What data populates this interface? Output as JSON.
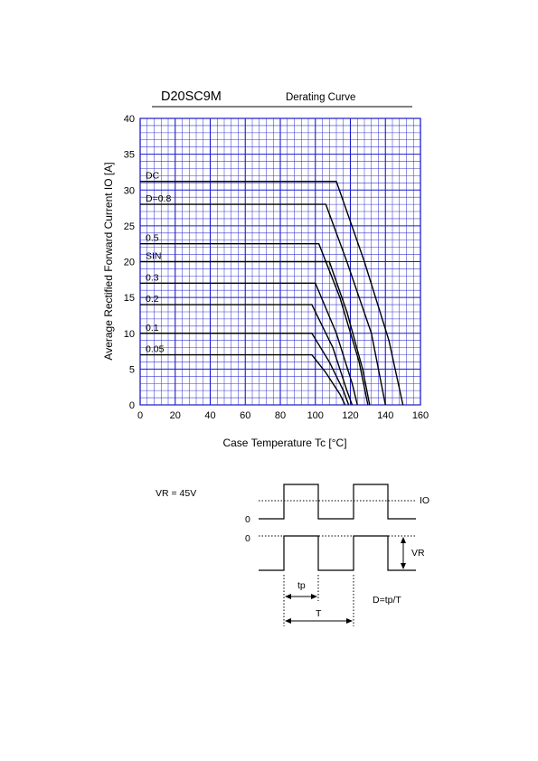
{
  "header": {
    "part_number": "D20SC9M",
    "subtitle": "Derating Curve"
  },
  "chart_data": {
    "type": "line",
    "title": "Derating Curve",
    "xlabel": "Case Temperature  Tc  [°C]",
    "ylabel": "Average Rectified Forward Current  IO [A]",
    "xlim": [
      0,
      160
    ],
    "ylim": [
      0,
      40
    ],
    "xticks": [
      "0",
      "20",
      "40",
      "60",
      "80",
      "100",
      "120",
      "140",
      "160"
    ],
    "yticks": [
      "0",
      "5",
      "10",
      "15",
      "20",
      "25",
      "30",
      "35",
      "40"
    ],
    "grid": true,
    "grid_color": "#1a1acc",
    "line_color": "#000000",
    "series": [
      {
        "name": "DC",
        "x": [
          0,
          112,
          128,
          142,
          150
        ],
        "y": [
          31.2,
          31.2,
          20,
          9,
          0
        ]
      },
      {
        "name": "D=0.8",
        "x": [
          0,
          106,
          118,
          132,
          140
        ],
        "y": [
          28,
          28,
          20,
          10,
          0
        ]
      },
      {
        "name": "0.5",
        "x": [
          0,
          102,
          114,
          125,
          130
        ],
        "y": [
          22.5,
          22.5,
          15,
          6,
          0
        ]
      },
      {
        "name": "SIN",
        "x": [
          0,
          108,
          118,
          127,
          131
        ],
        "y": [
          20,
          20,
          13,
          5,
          0
        ]
      },
      {
        "name": "0.3",
        "x": [
          0,
          100,
          112,
          121,
          124
        ],
        "y": [
          17,
          17,
          10,
          3,
          0
        ]
      },
      {
        "name": "0.2",
        "x": [
          0,
          98,
          110,
          118,
          121
        ],
        "y": [
          14,
          14,
          8,
          2,
          0
        ]
      },
      {
        "name": "0.1",
        "x": [
          0,
          98,
          108,
          116,
          119
        ],
        "y": [
          10,
          10,
          6,
          2,
          0
        ]
      },
      {
        "name": "0.05",
        "x": [
          0,
          98,
          106,
          114,
          117
        ],
        "y": [
          7,
          7,
          4.5,
          1.5,
          0
        ]
      }
    ]
  },
  "waveform": {
    "vr_condition": "VR = 45V",
    "io_label": "IO",
    "vr_label": "VR",
    "zero_label_top": "0",
    "zero_label_bottom": "0",
    "tp_label": "tp",
    "t_label": "T",
    "duty_formula": "D=tp/T"
  }
}
